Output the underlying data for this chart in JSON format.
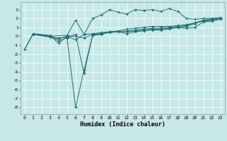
{
  "xlabel": "Humidex (Indice chaleur)",
  "bg_color": "#c8e8e8",
  "line_color": "#1a7070",
  "grid_color": "#ffffff",
  "xlim": [
    -0.5,
    23.5
  ],
  "ylim": [
    -8.8,
    3.8
  ],
  "yticks": [
    -8,
    -7,
    -6,
    -5,
    -4,
    -3,
    -2,
    -1,
    0,
    1,
    2,
    3
  ],
  "xticks": [
    0,
    1,
    2,
    3,
    4,
    5,
    6,
    7,
    8,
    9,
    10,
    11,
    12,
    13,
    14,
    15,
    16,
    17,
    18,
    19,
    20,
    21,
    22,
    23
  ],
  "series": [
    {
      "x": [
        0,
        1,
        3,
        4,
        5,
        6,
        7,
        8,
        9,
        10,
        11,
        12,
        13,
        14,
        15,
        16,
        17,
        18,
        19,
        20,
        21,
        22,
        23
      ],
      "y": [
        -1.5,
        0.2,
        0.0,
        -0.5,
        -0.2,
        -8.0,
        -3.8,
        0.1,
        0.2,
        0.5,
        0.5,
        0.3,
        0.5,
        0.6,
        0.7,
        0.7,
        0.8,
        1.0,
        0.9,
        1.0,
        1.6,
        1.7,
        1.9
      ]
    },
    {
      "x": [
        0,
        1,
        3,
        4,
        5,
        6,
        7,
        8,
        9,
        10,
        11,
        12,
        13,
        14,
        15,
        16,
        17,
        18,
        19,
        20,
        21,
        22,
        23
      ],
      "y": [
        -1.5,
        0.3,
        0.1,
        -0.8,
        0.0,
        -0.4,
        0.2,
        0.3,
        0.4,
        0.5,
        0.6,
        0.8,
        0.9,
        1.0,
        1.1,
        1.1,
        1.1,
        1.2,
        1.3,
        1.5,
        1.7,
        1.8,
        2.0
      ]
    },
    {
      "x": [
        1,
        3,
        5,
        6,
        7,
        8,
        9,
        10,
        11,
        12,
        13,
        14,
        15,
        16,
        17,
        18,
        19,
        20,
        21,
        22,
        23
      ],
      "y": [
        0.2,
        0.0,
        0.1,
        1.8,
        0.2,
        2.0,
        2.4,
        3.0,
        2.7,
        2.5,
        3.0,
        2.9,
        3.0,
        2.8,
        3.1,
        2.8,
        2.0,
        1.9,
        2.0,
        2.0,
        2.1
      ]
    },
    {
      "x": [
        1,
        3,
        4,
        5,
        6,
        7,
        8,
        9,
        10,
        11,
        12,
        13,
        14,
        15,
        16,
        17,
        18,
        19,
        20,
        21,
        22,
        23
      ],
      "y": [
        0.2,
        -0.1,
        -0.2,
        -0.1,
        0.2,
        -4.2,
        0.1,
        0.3,
        0.4,
        0.5,
        0.6,
        0.7,
        0.8,
        0.9,
        0.9,
        1.0,
        1.1,
        1.2,
        1.5,
        1.8,
        1.9,
        2.0
      ]
    },
    {
      "x": [
        1,
        3,
        4,
        5,
        6,
        7,
        8,
        9,
        10,
        11,
        12,
        13,
        14,
        15,
        16,
        17,
        18,
        19,
        20,
        21,
        22,
        23
      ],
      "y": [
        0.2,
        0.0,
        -0.3,
        0.0,
        0.0,
        -0.2,
        0.2,
        0.3,
        0.5,
        0.5,
        0.5,
        0.6,
        0.7,
        0.8,
        0.8,
        0.9,
        1.0,
        1.1,
        1.4,
        1.8,
        1.9,
        2.0
      ]
    }
  ]
}
